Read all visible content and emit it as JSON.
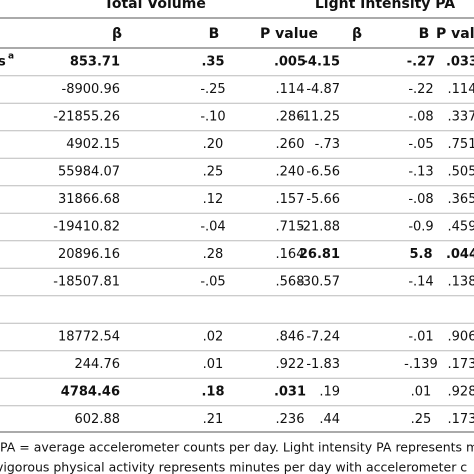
{
  "table": {
    "groups": [
      "Total Volume",
      "Light Intensity PA"
    ],
    "columns": [
      "β",
      "B",
      "P value",
      "β",
      "B",
      "P value"
    ],
    "rows": [
      {
        "label": "s",
        "note": "a",
        "cells": [
          "853.71",
          ".35",
          ".005",
          "-4.15",
          "-.27",
          ".033"
        ],
        "bold": [
          true,
          true,
          true,
          true,
          true,
          true
        ]
      },
      {
        "cells": [
          "-8900.96",
          "-.25",
          ".114",
          "-4.87",
          "-.22",
          ".114"
        ]
      },
      {
        "cells": [
          "-21855.26",
          "-.10",
          ".286",
          "-11.25",
          "-.08",
          ".337"
        ]
      },
      {
        "cells": [
          "4902.15",
          ".20",
          ".260",
          "-.73",
          "-.05",
          ".751"
        ]
      },
      {
        "cells": [
          "55984.07",
          ".25",
          ".240",
          "-6.56",
          "-.13",
          ".505"
        ]
      },
      {
        "cells": [
          "31866.68",
          ".12",
          ".157",
          "-5.66",
          "-.08",
          ".365"
        ]
      },
      {
        "cells": [
          "-19410.82",
          "-.04",
          ".715",
          "-21.88",
          "-0.9",
          ".459"
        ]
      },
      {
        "cells": [
          "20896.16",
          ".28",
          ".164",
          "26.81",
          "5.8",
          ".044"
        ],
        "bold": [
          false,
          false,
          false,
          true,
          true,
          true
        ]
      },
      {
        "cells": [
          "-18507.81",
          "-.05",
          ".568",
          "-30.57",
          "-.14",
          ".138"
        ]
      },
      {
        "cells": []
      },
      {
        "cells": [
          "18772.54",
          ".02",
          ".846",
          "-7.24",
          "-.01",
          ".906"
        ]
      },
      {
        "cells": [
          "244.76",
          ".01",
          ".922",
          "-1.83",
          "-.139",
          ".173"
        ]
      },
      {
        "cells": [
          "4784.46",
          ".18",
          ".031",
          ".19",
          ".01",
          ".928"
        ],
        "bold": [
          true,
          true,
          true,
          false,
          false,
          false
        ]
      },
      {
        "cells": [
          "602.88",
          ".21",
          ".236",
          ".44",
          ".25",
          ".173"
        ]
      }
    ],
    "footnotes": [
      "PA = average accelerometer counts per day. Light intensity PA represents m",
      "vigorous physical activity represents minutes per day with accelerometer c"
    ]
  }
}
